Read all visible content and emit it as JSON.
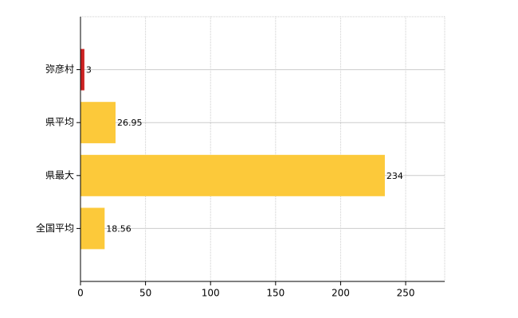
{
  "chart_data": {
    "type": "bar",
    "orientation": "horizontal",
    "categories": [
      "弥彦村",
      "県平均",
      "県最大",
      "全国平均"
    ],
    "values": [
      3,
      26.95,
      234,
      18.56
    ],
    "colors": [
      "#cc2222",
      "#fcc93a",
      "#fcc93a",
      "#fcc93a"
    ],
    "xlim": [
      0,
      280
    ],
    "xticks": [
      0,
      50,
      100,
      150,
      200,
      250
    ],
    "grid": true
  }
}
